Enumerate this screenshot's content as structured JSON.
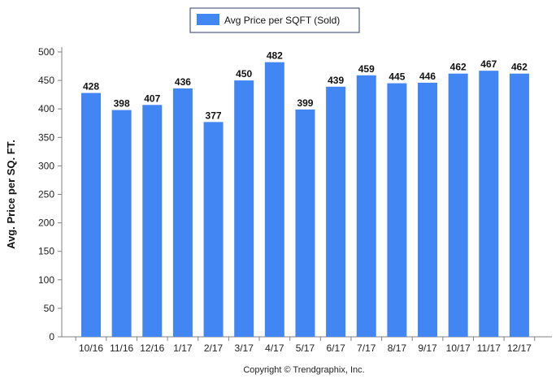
{
  "colors": {
    "bar": "#4286f4",
    "axis": "#808080",
    "legend_border": "#2b3d6b",
    "text": "#222222"
  },
  "copyright": "Copyright © Trendgraphix, Inc.",
  "chart_data": {
    "type": "bar",
    "title": "",
    "xlabel": "",
    "ylabel": "Avg. Price per SQ. FT.",
    "ylim": [
      0,
      500
    ],
    "yticks": [
      0,
      50,
      100,
      150,
      200,
      250,
      300,
      350,
      400,
      450,
      500
    ],
    "grid": false,
    "legend": "top-center",
    "categories": [
      "10/16",
      "11/16",
      "12/16",
      "1/17",
      "2/17",
      "3/17",
      "4/17",
      "5/17",
      "6/17",
      "7/17",
      "8/17",
      "9/17",
      "10/17",
      "11/17",
      "12/17"
    ],
    "series": [
      {
        "name": "Avg Price per SQFT (Sold)",
        "values": [
          428,
          398,
          407,
          436,
          377,
          450,
          482,
          399,
          439,
          459,
          445,
          446,
          462,
          467,
          462
        ]
      }
    ]
  }
}
